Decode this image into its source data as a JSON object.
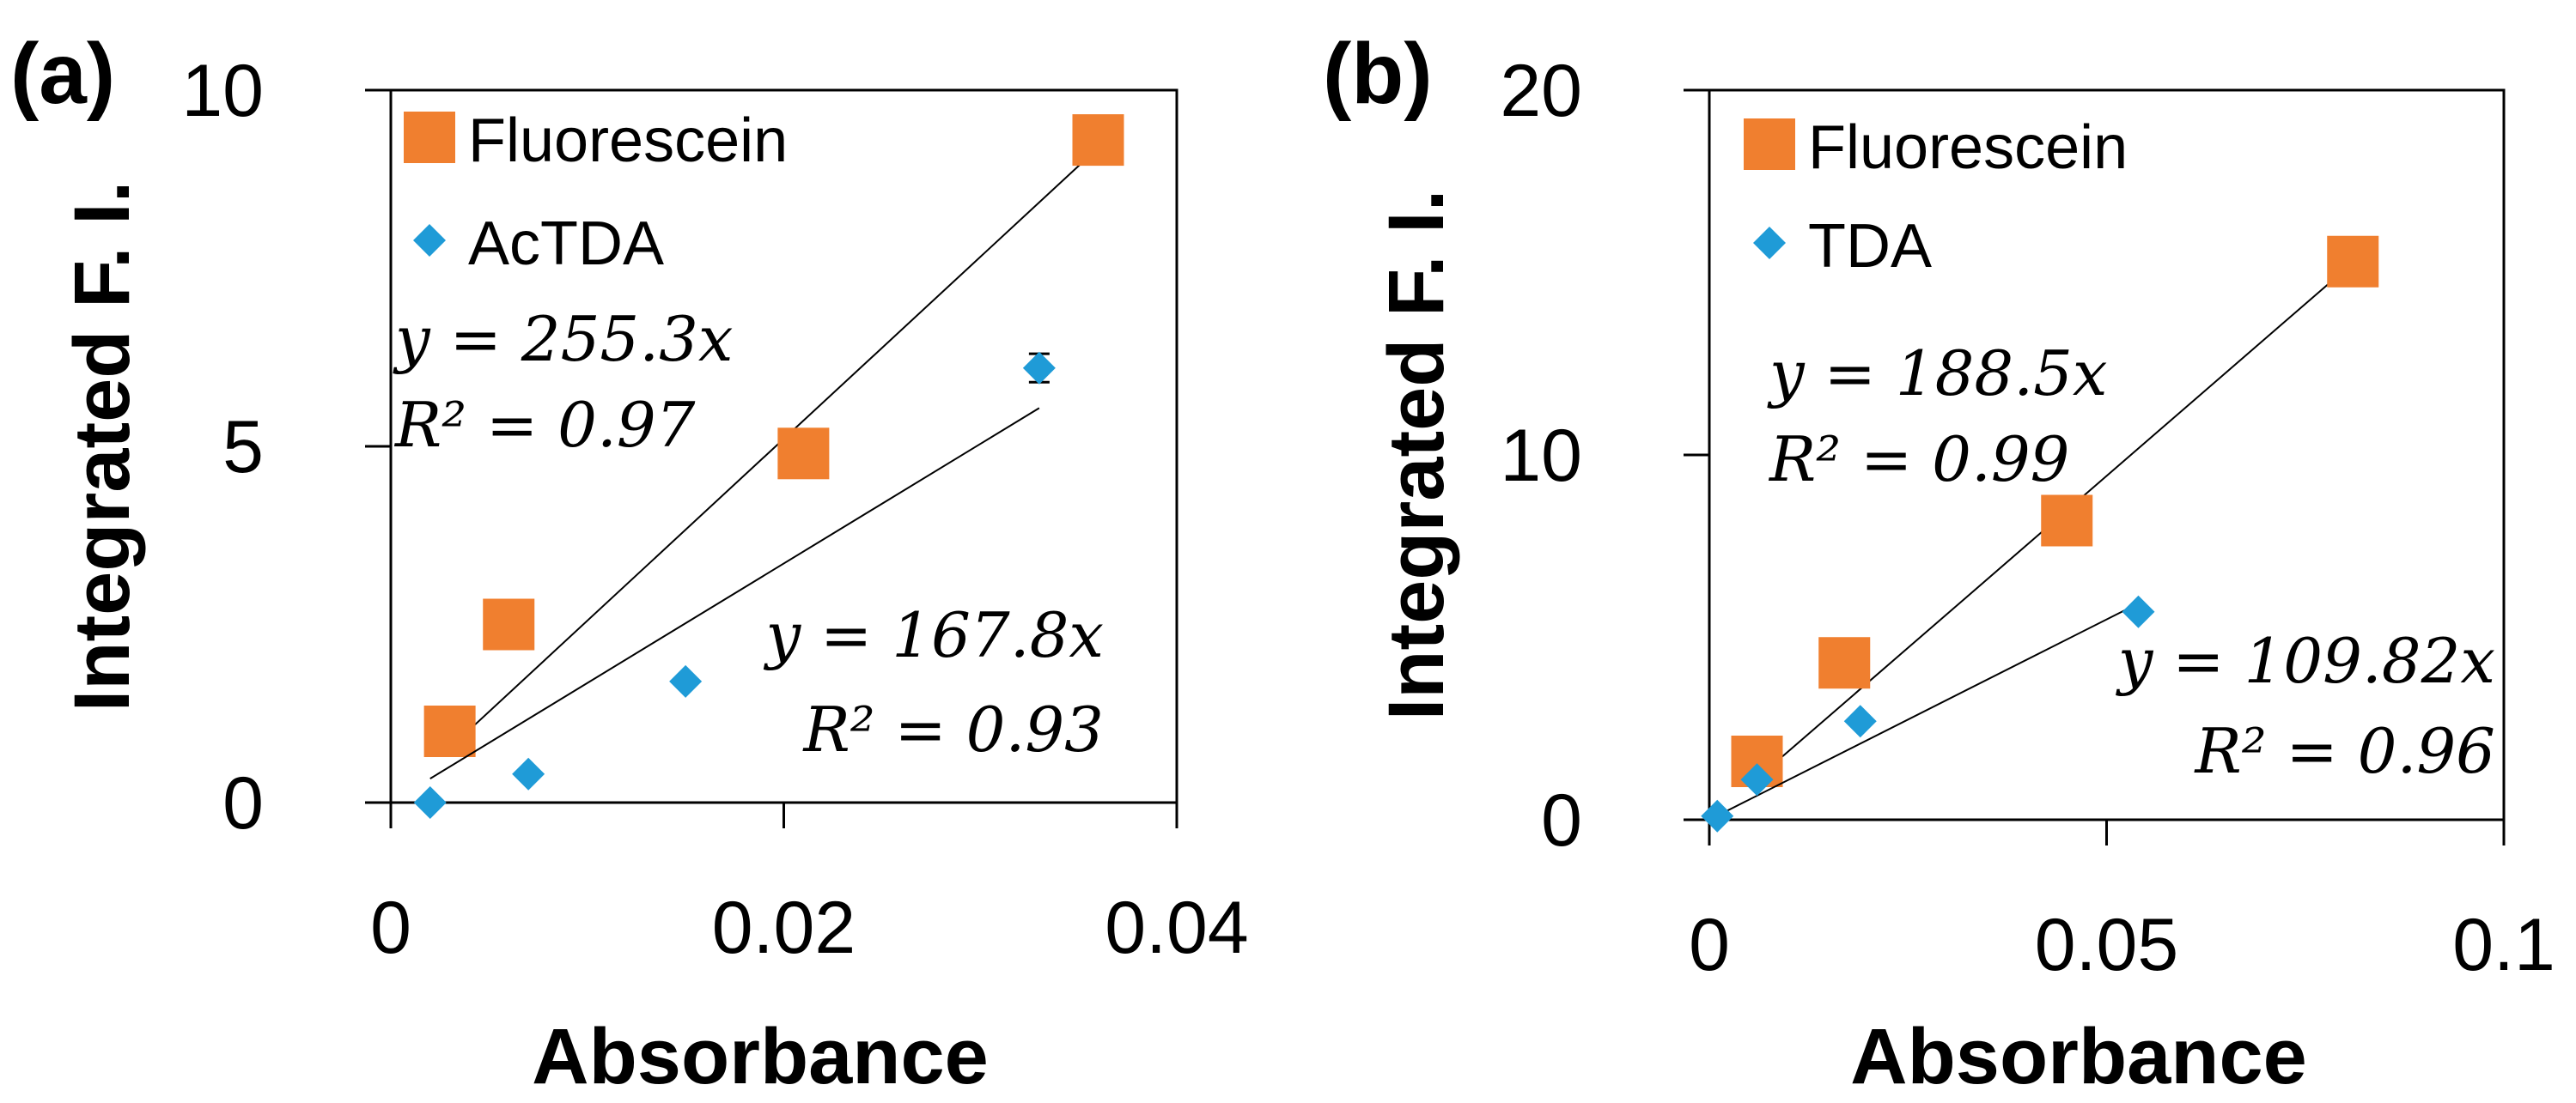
{
  "chart_data": [
    {
      "panel_label": "(a)",
      "type": "scatter",
      "xlabel": "Absorbance",
      "ylabel": "Integrated F. I.",
      "xlim": [
        0,
        0.04
      ],
      "ylim": [
        0,
        10
      ],
      "xticks": [
        0,
        0.02,
        0.04
      ],
      "xtick_labels": [
        "0",
        "0.02",
        "0.04"
      ],
      "yticks": [
        0,
        5,
        10
      ],
      "ytick_labels": [
        "0",
        "5",
        "10"
      ],
      "grid": false,
      "legend_position": "top-left",
      "series": [
        {
          "name": "Fluorescein",
          "marker": "square",
          "color": "#f07f2f",
          "x": [
            0.003,
            0.006,
            0.021,
            0.036
          ],
          "y": [
            1.0,
            2.5,
            4.9,
            9.3
          ],
          "fit_slope": 255.3,
          "equation": "y = 255.3x",
          "r2": "R² = 0.97"
        },
        {
          "name": "AcTDA",
          "marker": "diamond",
          "color": "#1f9bd7",
          "x": [
            0.002,
            0.007,
            0.015,
            0.033
          ],
          "y": [
            0.0,
            0.4,
            1.7,
            6.1
          ],
          "fit_slope": 167.8,
          "error": [
            0,
            0,
            0,
            0.2
          ],
          "equation": "y = 167.8x",
          "r2": "R² = 0.93"
        }
      ]
    },
    {
      "panel_label": "(b)",
      "type": "scatter",
      "xlabel": "Absorbance",
      "ylabel": "Integrated F. I.",
      "xlim": [
        0,
        0.1
      ],
      "ylim": [
        0,
        20
      ],
      "xticks": [
        0,
        0.05,
        0.1
      ],
      "xtick_labels": [
        "0",
        "0.05",
        "0.1"
      ],
      "yticks": [
        0,
        10,
        20
      ],
      "ytick_labels": [
        "0",
        "10",
        "20"
      ],
      "grid": false,
      "legend_position": "top-left",
      "series": [
        {
          "name": "Fluorescein",
          "marker": "square",
          "color": "#f07f2f",
          "x": [
            0.006,
            0.017,
            0.045,
            0.081
          ],
          "y": [
            1.6,
            4.3,
            8.2,
            15.3
          ],
          "fit_slope": 188.5,
          "equation": "y = 188.5x",
          "r2": "R² = 0.99"
        },
        {
          "name": "TDA",
          "marker": "diamond",
          "color": "#1f9bd7",
          "x": [
            0.001,
            0.006,
            0.019,
            0.054
          ],
          "y": [
            0.1,
            1.1,
            2.7,
            5.7
          ],
          "fit_slope": 109.82,
          "equation": "y = 109.82x",
          "r2": "R² = 0.96"
        }
      ]
    }
  ]
}
